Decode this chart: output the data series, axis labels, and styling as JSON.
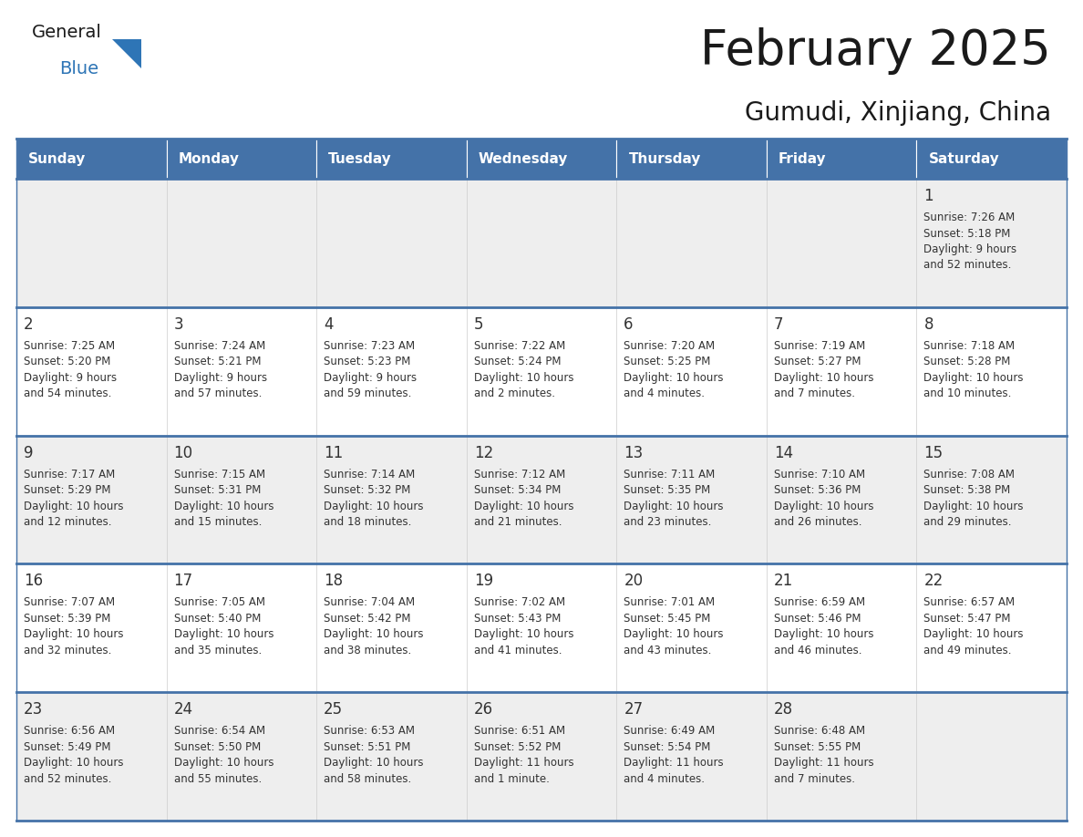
{
  "title": "February 2025",
  "subtitle": "Gumudi, Xinjiang, China",
  "days_of_week": [
    "Sunday",
    "Monday",
    "Tuesday",
    "Wednesday",
    "Thursday",
    "Friday",
    "Saturday"
  ],
  "header_bg": "#4472a8",
  "header_text": "#ffffff",
  "row_bg_odd": "#eeeeee",
  "row_bg_even": "#ffffff",
  "cell_text_color": "#333333",
  "day_num_color": "#333333",
  "border_color": "#4472a8",
  "calendar_data": [
    [
      null,
      null,
      null,
      null,
      null,
      null,
      {
        "day": 1,
        "sunrise": "7:26 AM",
        "sunset": "5:18 PM",
        "daylight_line1": "Daylight: 9 hours",
        "daylight_line2": "and 52 minutes."
      }
    ],
    [
      {
        "day": 2,
        "sunrise": "7:25 AM",
        "sunset": "5:20 PM",
        "daylight_line1": "Daylight: 9 hours",
        "daylight_line2": "and 54 minutes."
      },
      {
        "day": 3,
        "sunrise": "7:24 AM",
        "sunset": "5:21 PM",
        "daylight_line1": "Daylight: 9 hours",
        "daylight_line2": "and 57 minutes."
      },
      {
        "day": 4,
        "sunrise": "7:23 AM",
        "sunset": "5:23 PM",
        "daylight_line1": "Daylight: 9 hours",
        "daylight_line2": "and 59 minutes."
      },
      {
        "day": 5,
        "sunrise": "7:22 AM",
        "sunset": "5:24 PM",
        "daylight_line1": "Daylight: 10 hours",
        "daylight_line2": "and 2 minutes."
      },
      {
        "day": 6,
        "sunrise": "7:20 AM",
        "sunset": "5:25 PM",
        "daylight_line1": "Daylight: 10 hours",
        "daylight_line2": "and 4 minutes."
      },
      {
        "day": 7,
        "sunrise": "7:19 AM",
        "sunset": "5:27 PM",
        "daylight_line1": "Daylight: 10 hours",
        "daylight_line2": "and 7 minutes."
      },
      {
        "day": 8,
        "sunrise": "7:18 AM",
        "sunset": "5:28 PM",
        "daylight_line1": "Daylight: 10 hours",
        "daylight_line2": "and 10 minutes."
      }
    ],
    [
      {
        "day": 9,
        "sunrise": "7:17 AM",
        "sunset": "5:29 PM",
        "daylight_line1": "Daylight: 10 hours",
        "daylight_line2": "and 12 minutes."
      },
      {
        "day": 10,
        "sunrise": "7:15 AM",
        "sunset": "5:31 PM",
        "daylight_line1": "Daylight: 10 hours",
        "daylight_line2": "and 15 minutes."
      },
      {
        "day": 11,
        "sunrise": "7:14 AM",
        "sunset": "5:32 PM",
        "daylight_line1": "Daylight: 10 hours",
        "daylight_line2": "and 18 minutes."
      },
      {
        "day": 12,
        "sunrise": "7:12 AM",
        "sunset": "5:34 PM",
        "daylight_line1": "Daylight: 10 hours",
        "daylight_line2": "and 21 minutes."
      },
      {
        "day": 13,
        "sunrise": "7:11 AM",
        "sunset": "5:35 PM",
        "daylight_line1": "Daylight: 10 hours",
        "daylight_line2": "and 23 minutes."
      },
      {
        "day": 14,
        "sunrise": "7:10 AM",
        "sunset": "5:36 PM",
        "daylight_line1": "Daylight: 10 hours",
        "daylight_line2": "and 26 minutes."
      },
      {
        "day": 15,
        "sunrise": "7:08 AM",
        "sunset": "5:38 PM",
        "daylight_line1": "Daylight: 10 hours",
        "daylight_line2": "and 29 minutes."
      }
    ],
    [
      {
        "day": 16,
        "sunrise": "7:07 AM",
        "sunset": "5:39 PM",
        "daylight_line1": "Daylight: 10 hours",
        "daylight_line2": "and 32 minutes."
      },
      {
        "day": 17,
        "sunrise": "7:05 AM",
        "sunset": "5:40 PM",
        "daylight_line1": "Daylight: 10 hours",
        "daylight_line2": "and 35 minutes."
      },
      {
        "day": 18,
        "sunrise": "7:04 AM",
        "sunset": "5:42 PM",
        "daylight_line1": "Daylight: 10 hours",
        "daylight_line2": "and 38 minutes."
      },
      {
        "day": 19,
        "sunrise": "7:02 AM",
        "sunset": "5:43 PM",
        "daylight_line1": "Daylight: 10 hours",
        "daylight_line2": "and 41 minutes."
      },
      {
        "day": 20,
        "sunrise": "7:01 AM",
        "sunset": "5:45 PM",
        "daylight_line1": "Daylight: 10 hours",
        "daylight_line2": "and 43 minutes."
      },
      {
        "day": 21,
        "sunrise": "6:59 AM",
        "sunset": "5:46 PM",
        "daylight_line1": "Daylight: 10 hours",
        "daylight_line2": "and 46 minutes."
      },
      {
        "day": 22,
        "sunrise": "6:57 AM",
        "sunset": "5:47 PM",
        "daylight_line1": "Daylight: 10 hours",
        "daylight_line2": "and 49 minutes."
      }
    ],
    [
      {
        "day": 23,
        "sunrise": "6:56 AM",
        "sunset": "5:49 PM",
        "daylight_line1": "Daylight: 10 hours",
        "daylight_line2": "and 52 minutes."
      },
      {
        "day": 24,
        "sunrise": "6:54 AM",
        "sunset": "5:50 PM",
        "daylight_line1": "Daylight: 10 hours",
        "daylight_line2": "and 55 minutes."
      },
      {
        "day": 25,
        "sunrise": "6:53 AM",
        "sunset": "5:51 PM",
        "daylight_line1": "Daylight: 10 hours",
        "daylight_line2": "and 58 minutes."
      },
      {
        "day": 26,
        "sunrise": "6:51 AM",
        "sunset": "5:52 PM",
        "daylight_line1": "Daylight: 11 hours",
        "daylight_line2": "and 1 minute."
      },
      {
        "day": 27,
        "sunrise": "6:49 AM",
        "sunset": "5:54 PM",
        "daylight_line1": "Daylight: 11 hours",
        "daylight_line2": "and 4 minutes."
      },
      {
        "day": 28,
        "sunrise": "6:48 AM",
        "sunset": "5:55 PM",
        "daylight_line1": "Daylight: 11 hours",
        "daylight_line2": "and 7 minutes."
      },
      null
    ]
  ],
  "logo_general_color": "#1a1a1a",
  "logo_blue_color": "#2e75b6",
  "logo_triangle_color": "#2e75b6",
  "fig_width": 11.88,
  "fig_height": 9.18,
  "dpi": 100
}
